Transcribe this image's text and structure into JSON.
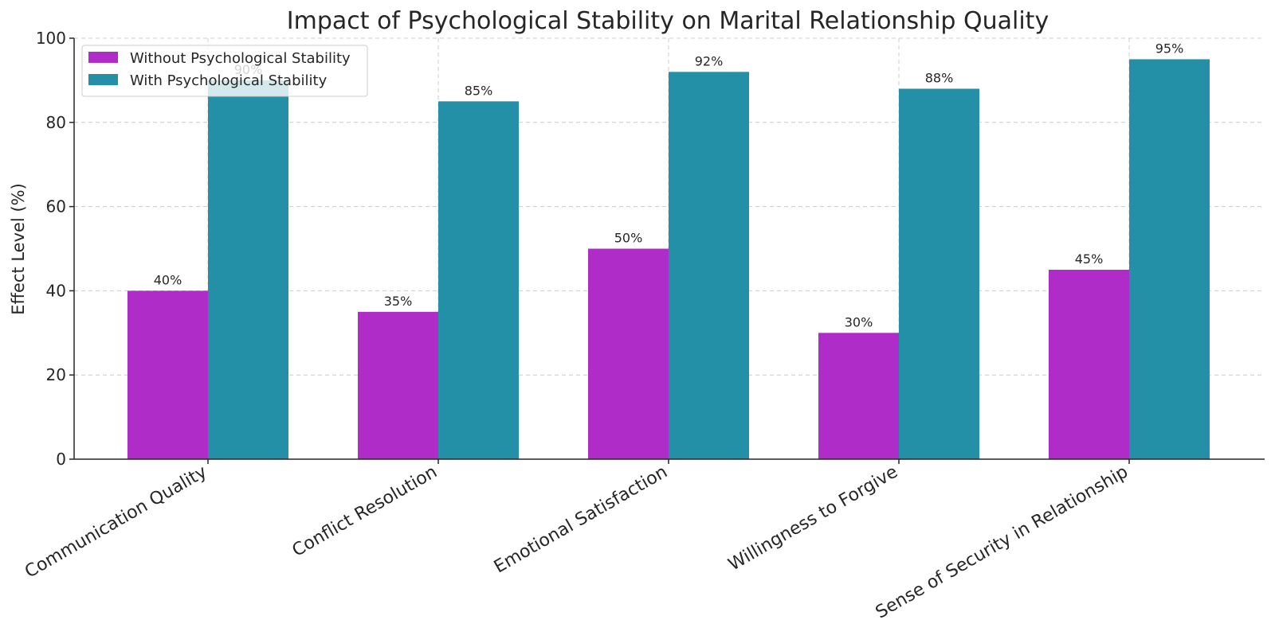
{
  "chart_data": {
    "type": "bar",
    "title": "Impact of Psychological Stability on Marital Relationship Quality",
    "xlabel": "",
    "ylabel": "Effect Level (%)",
    "ylim": [
      0,
      100
    ],
    "yticks": [
      0,
      20,
      40,
      60,
      80,
      100
    ],
    "grid": true,
    "legend_position": "top-left",
    "categories": [
      "Communication Quality",
      "Conflict Resolution",
      "Emotional Satisfaction",
      "Willingness to Forgive",
      "Sense of Security in Relationship"
    ],
    "series": [
      {
        "name": "Without Psychological Stability",
        "color": "#b02cc9",
        "values": [
          40,
          35,
          50,
          30,
          45
        ],
        "labels": [
          "40%",
          "35%",
          "50%",
          "30%",
          "45%"
        ]
      },
      {
        "name": "With Psychological Stability",
        "color": "#2490a8",
        "values": [
          90,
          85,
          92,
          88,
          95
        ],
        "labels": [
          "90%",
          "85%",
          "92%",
          "88%",
          "95%"
        ]
      }
    ]
  }
}
